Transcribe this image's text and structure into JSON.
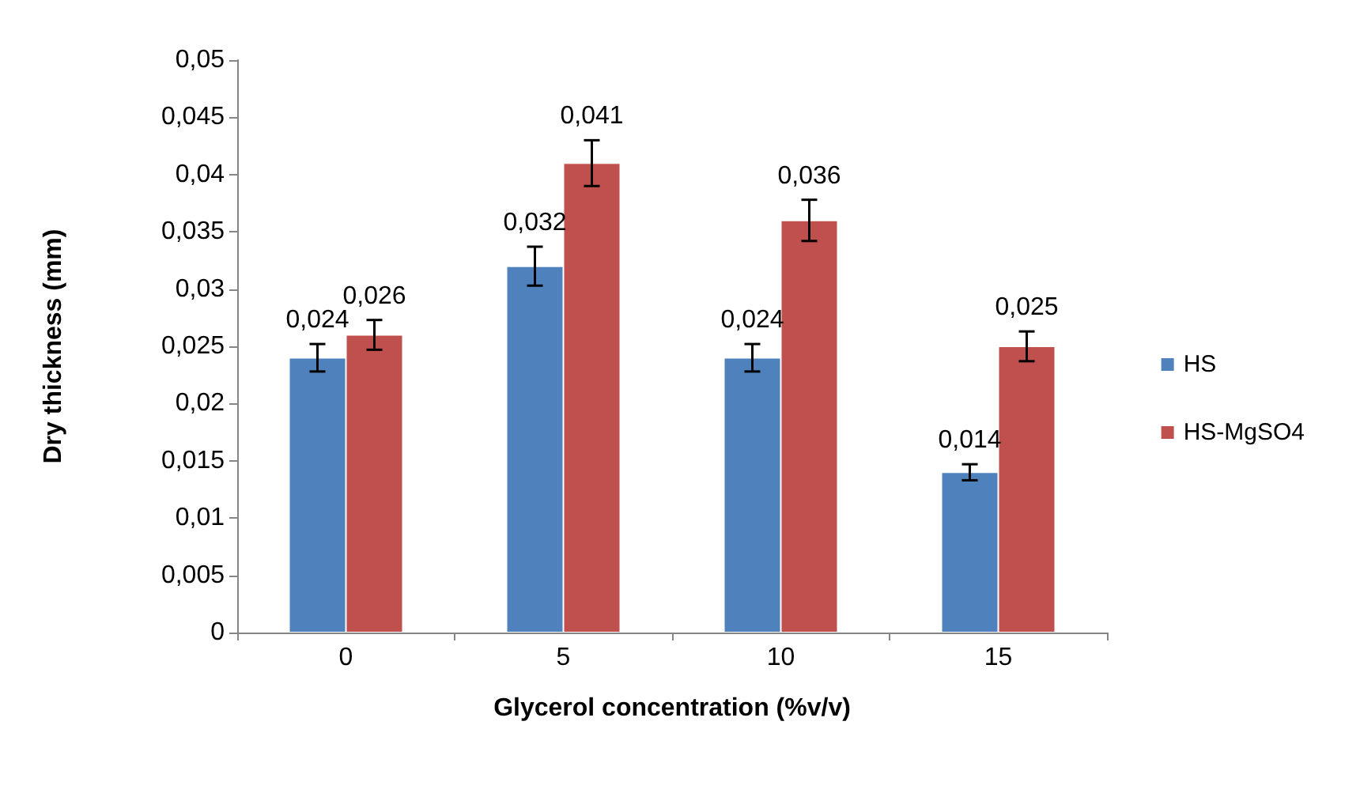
{
  "chart_data": {
    "type": "bar",
    "xlabel": "Glycerol concentration (%v/v)",
    "ylabel": "Dry thickness (mm)",
    "categories": [
      "0",
      "5",
      "10",
      "15"
    ],
    "series": [
      {
        "name": "HS",
        "color": "#4f81bd",
        "values": [
          0.024,
          0.032,
          0.024,
          0.014
        ],
        "errors": [
          0.0012,
          0.0017,
          0.0012,
          0.0007
        ],
        "value_labels": [
          "0,024",
          "0,032",
          "0,024",
          "0,014"
        ]
      },
      {
        "name": "HS-MgSO4",
        "color": "#c0504d",
        "values": [
          0.026,
          0.041,
          0.036,
          0.025
        ],
        "errors": [
          0.0013,
          0.002,
          0.0018,
          0.0013
        ],
        "value_labels": [
          "0,026",
          "0,041",
          "0,036",
          "0,025"
        ]
      }
    ],
    "ylim": [
      0,
      0.05
    ],
    "yticks": [
      {
        "value": 0,
        "label": "0"
      },
      {
        "value": 0.005,
        "label": "0,005"
      },
      {
        "value": 0.01,
        "label": "0,01"
      },
      {
        "value": 0.015,
        "label": "0,015"
      },
      {
        "value": 0.02,
        "label": "0,02"
      },
      {
        "value": 0.025,
        "label": "0,025"
      },
      {
        "value": 0.03,
        "label": "0,03"
      },
      {
        "value": 0.035,
        "label": "0,035"
      },
      {
        "value": 0.04,
        "label": "0,04"
      },
      {
        "value": 0.045,
        "label": "0,045"
      },
      {
        "value": 0.05,
        "label": "0,05"
      }
    ],
    "grid": false,
    "legend": "right"
  }
}
